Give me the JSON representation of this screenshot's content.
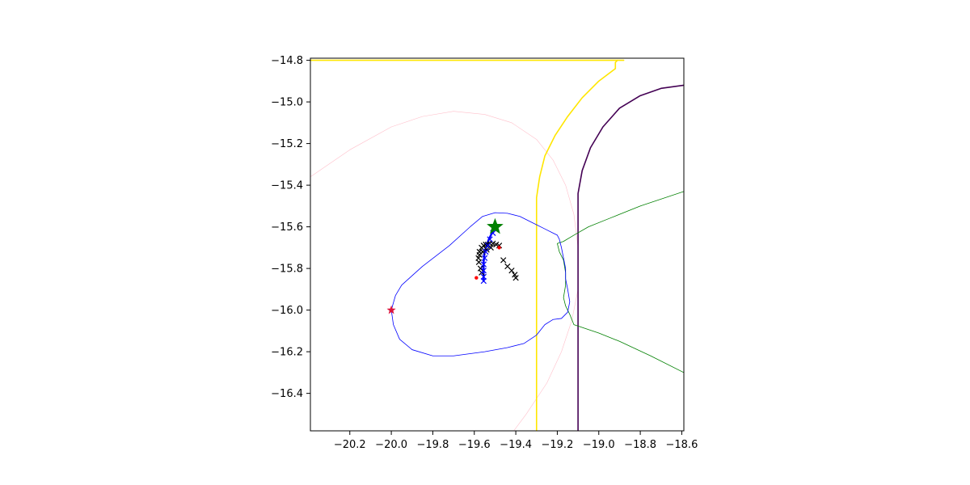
{
  "chart_data": {
    "type": "line",
    "title": "",
    "xlabel": "",
    "ylabel": "",
    "xlim": [
      -20.39,
      -18.59
    ],
    "ylim": [
      -16.58,
      -14.79
    ],
    "xticks": [
      -20.2,
      -20.0,
      -19.8,
      -19.6,
      -19.4,
      -19.2,
      -19.0,
      -18.8,
      -18.6
    ],
    "yticks": [
      -14.8,
      -15.0,
      -15.2,
      -15.4,
      -15.6,
      -15.8,
      -16.0,
      -16.2,
      -16.4
    ],
    "xtick_labels": [
      "−20.2",
      "−20.0",
      "−19.8",
      "−19.6",
      "−19.4",
      "−19.2",
      "−19.0",
      "−18.8",
      "−18.6"
    ],
    "ytick_labels": [
      "−14.8",
      "−15.0",
      "−15.2",
      "−15.4",
      "−15.6",
      "−15.8",
      "−16.0",
      "−16.2",
      "−16.4"
    ],
    "grid": false,
    "legend": "none",
    "series": [
      {
        "kind": "line",
        "color": "#ffc0cb",
        "width": 0.6,
        "x": [
          -20.39,
          -20.2,
          -20.0,
          -19.85,
          -19.7,
          -19.55,
          -19.42,
          -19.3,
          -19.22,
          -19.16,
          -19.12,
          -19.1,
          -19.1,
          -19.13,
          -19.18,
          -19.25,
          -19.35,
          -19.41
        ],
        "y": [
          -15.36,
          -15.23,
          -15.12,
          -15.07,
          -15.045,
          -15.06,
          -15.1,
          -15.18,
          -15.28,
          -15.4,
          -15.54,
          -15.7,
          -15.9,
          -16.05,
          -16.2,
          -16.35,
          -16.5,
          -16.58
        ]
      },
      {
        "kind": "line",
        "color": "#ffe600",
        "width": 1.6,
        "x": [
          -20.39,
          -18.88
        ],
        "y": [
          -14.8,
          -14.8
        ]
      },
      {
        "kind": "line",
        "color": "#ffe600",
        "width": 1.6,
        "x": [
          -18.91,
          -18.92,
          -18.92,
          -19.0,
          -19.08,
          -19.15,
          -19.21,
          -19.26,
          -19.285,
          -19.3,
          -19.3,
          -19.3
        ],
        "y": [
          -14.8,
          -14.81,
          -14.84,
          -14.9,
          -14.98,
          -15.07,
          -15.16,
          -15.26,
          -15.36,
          -15.46,
          -16.0,
          -16.58
        ]
      },
      {
        "kind": "line",
        "color": "#440154",
        "width": 1.6,
        "x": [
          -18.59,
          -18.7,
          -18.8,
          -18.9,
          -18.98,
          -19.04,
          -19.08,
          -19.1,
          -19.1,
          -19.1
        ],
        "y": [
          -14.92,
          -14.935,
          -14.97,
          -15.03,
          -15.12,
          -15.22,
          -15.33,
          -15.44,
          -16.0,
          -16.58
        ]
      },
      {
        "kind": "line",
        "color": "#008000",
        "width": 0.8,
        "x": [
          -18.59,
          -18.8,
          -18.95,
          -19.05,
          -19.12,
          -19.17,
          -19.2,
          -19.19,
          -19.17,
          -19.16,
          -19.16,
          -19.17,
          -19.16,
          -19.14,
          -19.12,
          -19.0,
          -18.9,
          -18.75,
          -18.59
        ],
        "y": [
          -15.43,
          -15.5,
          -15.56,
          -15.6,
          -15.64,
          -15.67,
          -15.68,
          -15.72,
          -15.76,
          -15.82,
          -15.88,
          -15.94,
          -15.98,
          -16.02,
          -16.07,
          -16.11,
          -16.15,
          -16.22,
          -16.3
        ]
      },
      {
        "kind": "line",
        "color": "#0000ff",
        "width": 0.8,
        "x": [
          -20.0,
          -19.98,
          -19.95,
          -19.85,
          -19.72,
          -19.62,
          -19.56,
          -19.5,
          -19.44,
          -19.38,
          -19.32,
          -19.26,
          -19.22,
          -19.2,
          -19.19,
          -19.18,
          -19.17,
          -19.16,
          -19.16,
          -19.15,
          -19.14,
          -19.15,
          -19.18,
          -19.22,
          -19.26,
          -19.3,
          -19.36,
          -19.44,
          -19.55,
          -19.7,
          -19.8,
          -19.9,
          -19.96,
          -19.99,
          -20.0
        ],
        "y": [
          -16.0,
          -15.93,
          -15.88,
          -15.79,
          -15.69,
          -15.6,
          -15.55,
          -15.532,
          -15.535,
          -15.55,
          -15.58,
          -15.61,
          -15.63,
          -15.64,
          -15.66,
          -15.7,
          -15.75,
          -15.8,
          -15.85,
          -15.9,
          -15.96,
          -16.01,
          -16.04,
          -16.045,
          -16.07,
          -16.12,
          -16.16,
          -16.18,
          -16.2,
          -16.22,
          -16.22,
          -16.19,
          -16.14,
          -16.07,
          -16.0
        ]
      },
      {
        "kind": "line",
        "color": "#0000ff",
        "width": 2.4,
        "x": [
          -19.5,
          -19.53,
          -19.55,
          -19.555,
          -19.555,
          -19.555
        ],
        "y": [
          -15.6,
          -15.66,
          -15.72,
          -15.77,
          -15.82,
          -15.86
        ]
      },
      {
        "kind": "markers",
        "marker": "x",
        "color": "#000000",
        "x": [
          -19.575,
          -19.565,
          -19.555,
          -19.545,
          -19.535,
          -19.525,
          -19.51,
          -19.495,
          -19.48,
          -19.46,
          -19.44,
          -19.42,
          -19.405,
          -19.4,
          -19.52,
          -19.54,
          -19.56,
          -19.575,
          -19.58,
          -19.578,
          -19.57,
          -19.565
        ],
        "y": [
          -15.72,
          -15.7,
          -15.69,
          -15.685,
          -15.685,
          -15.68,
          -15.68,
          -15.685,
          -15.69,
          -15.76,
          -15.79,
          -15.81,
          -15.83,
          -15.845,
          -15.7,
          -15.71,
          -15.72,
          -15.735,
          -15.75,
          -15.77,
          -15.8,
          -15.82
        ]
      },
      {
        "kind": "markers",
        "marker": "x",
        "color": "#0000ff",
        "x": [
          -19.5,
          -19.51,
          -19.525,
          -19.535,
          -19.545,
          -19.55,
          -19.555,
          -19.555,
          -19.555,
          -19.555
        ],
        "y": [
          -15.6,
          -15.63,
          -15.66,
          -15.69,
          -15.72,
          -15.75,
          -15.78,
          -15.81,
          -15.84,
          -15.86
        ]
      },
      {
        "kind": "markers",
        "marker": "dot",
        "color": "#ff0000",
        "x": [
          -19.59,
          -19.48,
          -20.0
        ],
        "y": [
          -15.845,
          -15.7,
          -16.0
        ]
      },
      {
        "kind": "markers",
        "marker": "star",
        "color": "#008000",
        "size": 10,
        "x": [
          -19.5
        ],
        "y": [
          -15.6
        ]
      },
      {
        "kind": "markers",
        "marker": "star",
        "color": "#dc143c",
        "size": 5,
        "x": [
          -20.0
        ],
        "y": [
          -16.0
        ]
      }
    ]
  }
}
